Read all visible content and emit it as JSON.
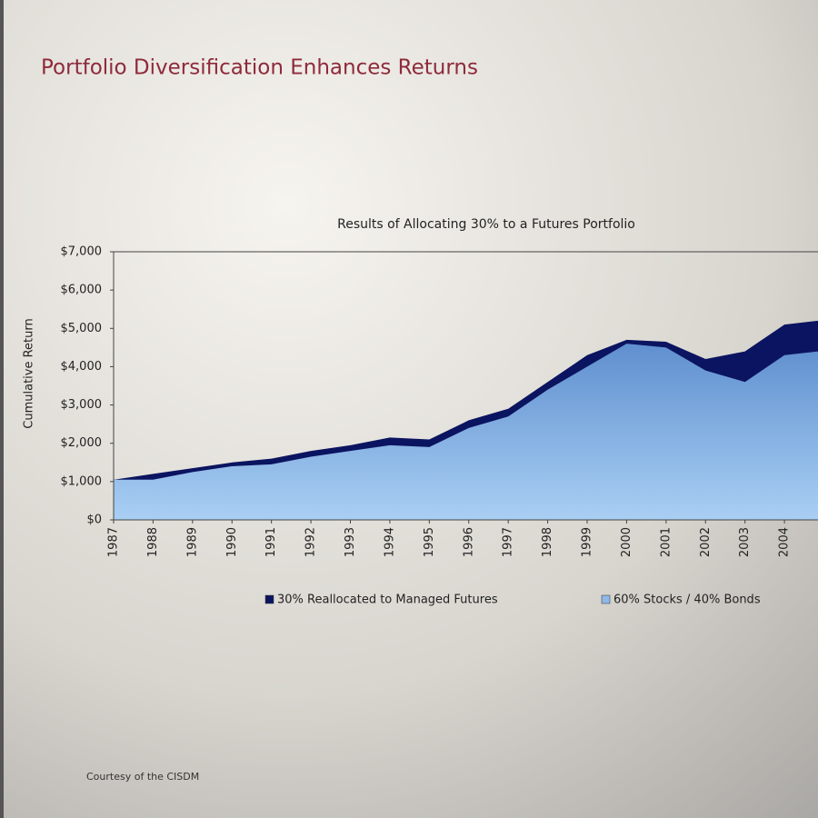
{
  "chart_data": {
    "type": "area",
    "title": "Portfolio Diversification Enhances Returns",
    "subtitle": "Results of Allocating 30% to a Futures Portfolio",
    "y_label": "Cumulative Return",
    "footnote": "Courtesy of the CISDM",
    "x": [
      1987,
      1988,
      1989,
      1990,
      1991,
      1992,
      1993,
      1994,
      1995,
      1996,
      1997,
      1998,
      1999,
      2000,
      2001,
      2002,
      2003,
      2004,
      2004.85
    ],
    "series": [
      {
        "name": "30% Reallocated to Managed Futures",
        "color": "#0b1460",
        "values": [
          1050,
          1200,
          1350,
          1500,
          1600,
          1800,
          1950,
          2150,
          2100,
          2600,
          2900,
          3600,
          4300,
          4700,
          4650,
          4200,
          4400,
          5100,
          5200
        ]
      },
      {
        "name": "60% Stocks / 40% Bonds",
        "color": "#8db8e8",
        "values": [
          1050,
          1050,
          1250,
          1400,
          1450,
          1650,
          1800,
          1950,
          1900,
          2400,
          2700,
          3400,
          4000,
          4600,
          4500,
          3900,
          3600,
          4300,
          4400
        ]
      }
    ],
    "xlim": [
      1987,
      2004.85
    ],
    "xticks": [
      1987,
      1988,
      1989,
      1990,
      1991,
      1992,
      1993,
      1994,
      1995,
      1996,
      1997,
      1998,
      1999,
      2000,
      2001,
      2002,
      2003,
      2004
    ],
    "ylim": [
      0,
      7000
    ],
    "yticks": [
      {
        "value": 0,
        "label": "$0"
      },
      {
        "value": 1000,
        "label": "$1,000"
      },
      {
        "value": 2000,
        "label": "$2,000"
      },
      {
        "value": 3000,
        "label": "$3,000"
      },
      {
        "value": 4000,
        "label": "$4,000"
      },
      {
        "value": 5000,
        "label": "$5,000"
      },
      {
        "value": 6000,
        "label": "$6,000"
      },
      {
        "value": 7000,
        "label": "$7,000"
      }
    ]
  }
}
